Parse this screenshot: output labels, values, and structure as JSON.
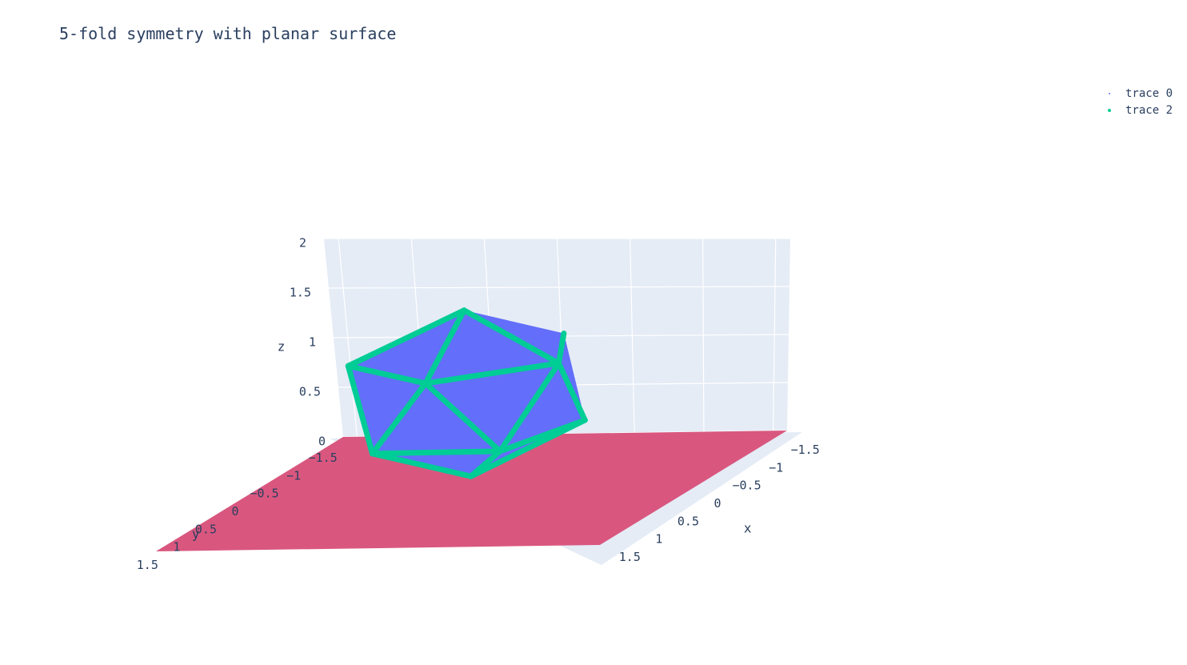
{
  "chart_data": {
    "type": "scatter3d",
    "title": "5-fold symmetry with planar surface",
    "axes": {
      "x": {
        "title": "x",
        "range": [
          -1.6,
          1.6
        ],
        "ticks": [
          -1.5,
          -1,
          -0.5,
          0,
          0.5,
          1,
          1.5
        ],
        "tick_labels": [
          "−1.5",
          "−1",
          "−0.5",
          "0",
          "0.5",
          "1",
          "1.5"
        ]
      },
      "y": {
        "title": "y",
        "range": [
          -1.6,
          1.6
        ],
        "ticks": [
          -1.5,
          -1,
          -0.5,
          0,
          0.5,
          1,
          1.5
        ],
        "tick_labels": [
          "−1.5",
          "−1",
          "−0.5",
          "0",
          "0.5",
          "1",
          "1.5"
        ]
      },
      "z": {
        "title": "z",
        "range": [
          0,
          2
        ],
        "ticks": [
          0,
          0.5,
          1,
          1.5,
          2
        ],
        "tick_labels": [
          "0",
          "0.5",
          "1",
          "1.5",
          "2"
        ]
      }
    },
    "legend": {
      "placement": "top-right",
      "entries": [
        {
          "name": "trace 0",
          "color": "#636efa",
          "marker": "dot-small"
        },
        {
          "name": "trace 2",
          "color": "#00cc96",
          "marker": "dot"
        }
      ]
    },
    "surface": {
      "name": "planar surface",
      "z": 0,
      "x": [
        -1.6,
        1.6
      ],
      "y": [
        -1.6,
        1.6
      ],
      "color": "#d9577f"
    },
    "polyhedron": {
      "shape": "icosahedron",
      "center": [
        0,
        0,
        1
      ],
      "circumradius": 0.85,
      "face_color": "#636efa",
      "edge_color": "#00cc96"
    },
    "grid": true,
    "background": "#e5ecf6"
  }
}
